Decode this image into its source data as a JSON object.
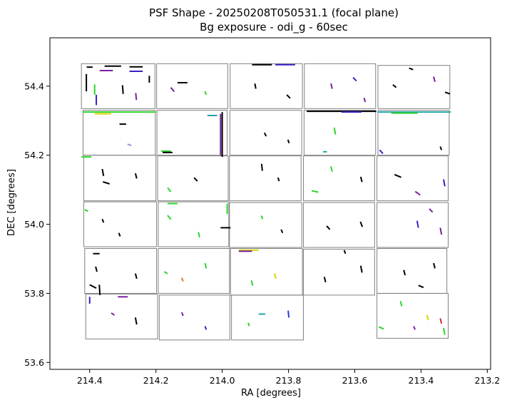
{
  "chart_data": {
    "type": "scatter",
    "title_line1": "PSF Shape - 20250208T050531.1 (focal plane)",
    "title_line2": "Bg exposure - odi_g - 60sec",
    "xlabel": "RA [degrees]",
    "ylabel": "DEC [degrees]",
    "xlim": [
      214.52,
      213.19
    ],
    "ylim": [
      53.58,
      54.54
    ],
    "x_inverted": true,
    "grid": false,
    "x_ticks": [
      {
        "value": 214.4,
        "label": "214.4"
      },
      {
        "value": 214.2,
        "label": "214.2"
      },
      {
        "value": 214.0,
        "label": "214.0"
      },
      {
        "value": 213.8,
        "label": "213.8"
      },
      {
        "value": 213.6,
        "label": "213.6"
      },
      {
        "value": 213.4,
        "label": "213.4"
      },
      {
        "value": 213.2,
        "label": "213.2"
      }
    ],
    "y_ticks": [
      {
        "value": 53.6,
        "label": "53.6"
      },
      {
        "value": 53.8,
        "label": "53.8"
      },
      {
        "value": 54.0,
        "label": "54.0"
      },
      {
        "value": 54.2,
        "label": "54.2"
      },
      {
        "value": 54.4,
        "label": "54.4"
      }
    ],
    "ccd_color": "#808080",
    "ccds": [
      {
        "ra": [
          214.425,
          214.203
        ],
        "dec": [
          54.335,
          54.465
        ]
      },
      {
        "ra": [
          214.198,
          213.983
        ],
        "dec": [
          54.335,
          54.465
        ]
      },
      {
        "ra": [
          213.976,
          213.758
        ],
        "dec": [
          54.335,
          54.465
        ]
      },
      {
        "ra": [
          213.752,
          213.537
        ],
        "dec": [
          54.335,
          54.465
        ]
      },
      {
        "ra": [
          213.53,
          213.313
        ],
        "dec": [
          54.335,
          54.46
        ]
      },
      {
        "ra": [
          214.42,
          214.202
        ],
        "dec": [
          54.2,
          54.33
        ]
      },
      {
        "ra": [
          214.197,
          213.985
        ],
        "dec": [
          54.2,
          54.33
        ]
      },
      {
        "ra": [
          213.977,
          213.76
        ],
        "dec": [
          54.2,
          54.33
        ]
      },
      {
        "ra": [
          213.753,
          213.537
        ],
        "dec": [
          54.2,
          54.33
        ]
      },
      {
        "ra": [
          213.53,
          213.315
        ],
        "dec": [
          54.2,
          54.33
        ]
      },
      {
        "ra": [
          214.418,
          214.2
        ],
        "dec": [
          54.068,
          54.2
        ]
      },
      {
        "ra": [
          214.195,
          213.982
        ],
        "dec": [
          54.068,
          54.198
        ]
      },
      {
        "ra": [
          213.978,
          213.762
        ],
        "dec": [
          54.068,
          54.198
        ]
      },
      {
        "ra": [
          213.755,
          213.54
        ],
        "dec": [
          54.068,
          54.198
        ]
      },
      {
        "ra": [
          213.533,
          213.318
        ],
        "dec": [
          54.068,
          54.198
        ]
      },
      {
        "ra": [
          214.418,
          214.198
        ],
        "dec": [
          53.935,
          54.065
        ]
      },
      {
        "ra": [
          214.193,
          213.98
        ],
        "dec": [
          53.935,
          54.065
        ]
      },
      {
        "ra": [
          213.978,
          213.76
        ],
        "dec": [
          53.933,
          54.063
        ]
      },
      {
        "ra": [
          213.755,
          213.54
        ],
        "dec": [
          53.933,
          54.063
        ]
      },
      {
        "ra": [
          213.533,
          213.318
        ],
        "dec": [
          53.933,
          54.063
        ]
      },
      {
        "ra": [
          214.415,
          214.198
        ],
        "dec": [
          53.8,
          53.93
        ]
      },
      {
        "ra": [
          214.193,
          213.978
        ],
        "dec": [
          53.8,
          53.93
        ]
      },
      {
        "ra": [
          213.975,
          213.758
        ],
        "dec": [
          53.795,
          53.93
        ]
      },
      {
        "ra": [
          213.755,
          213.54
        ],
        "dec": [
          53.795,
          53.928
        ]
      },
      {
        "ra": [
          213.533,
          213.322
        ],
        "dec": [
          53.8,
          53.93
        ]
      },
      {
        "ra": [
          214.412,
          214.195
        ],
        "dec": [
          53.668,
          53.798
        ]
      },
      {
        "ra": [
          214.19,
          213.977
        ],
        "dec": [
          53.665,
          53.795
        ]
      },
      {
        "ra": [
          213.972,
          213.755
        ],
        "dec": [
          53.665,
          53.795
        ]
      },
      {
        "ra": [
          213.533,
          213.318
        ],
        "dec": [
          53.67,
          53.8
        ]
      }
    ],
    "psf_marks": [
      {
        "ra": 214.4,
        "dec": 54.455,
        "dx": 0.018,
        "dy": 0,
        "color": "#000000"
      },
      {
        "ra": 214.33,
        "dec": 54.458,
        "dx": 0.05,
        "dy": 0,
        "color": "#000000"
      },
      {
        "ra": 214.26,
        "dec": 54.456,
        "dx": 0.04,
        "dy": 0,
        "color": "#000000"
      },
      {
        "ra": 214.35,
        "dec": 54.445,
        "dx": 0.04,
        "dy": 0,
        "color": "#7a1fa2"
      },
      {
        "ra": 214.26,
        "dec": 54.443,
        "dx": 0.04,
        "dy": 0,
        "color": "#3a1fc0"
      },
      {
        "ra": 214.41,
        "dec": 54.41,
        "dx": 0,
        "dy": 0.05,
        "color": "#000000"
      },
      {
        "ra": 214.385,
        "dec": 54.39,
        "dx": 0,
        "dy": 0.03,
        "color": "#2dd42d"
      },
      {
        "ra": 214.38,
        "dec": 54.36,
        "dx": 0,
        "dy": 0.03,
        "color": "#3a1fc0"
      },
      {
        "ra": 214.3,
        "dec": 54.39,
        "dx": 0.002,
        "dy": 0.025,
        "color": "#000000"
      },
      {
        "ra": 214.26,
        "dec": 54.37,
        "dx": 0.002,
        "dy": 0.02,
        "color": "#7a1fa2"
      },
      {
        "ra": 214.22,
        "dec": 54.42,
        "dx": 0,
        "dy": 0.02,
        "color": "#000000"
      },
      {
        "ra": 214.15,
        "dec": 54.39,
        "dx": 0.01,
        "dy": 0.012,
        "color": "#7a1fa2"
      },
      {
        "ra": 214.12,
        "dec": 54.41,
        "dx": 0.03,
        "dy": 0,
        "color": "#000000"
      },
      {
        "ra": 214.05,
        "dec": 54.38,
        "dx": 0.004,
        "dy": 0.01,
        "color": "#2dd42d"
      },
      {
        "ra": 213.88,
        "dec": 54.462,
        "dx": 0.06,
        "dy": 0,
        "color": "#000000"
      },
      {
        "ra": 213.81,
        "dec": 54.462,
        "dx": 0.06,
        "dy": 0,
        "color": "#3a1fc0"
      },
      {
        "ra": 213.9,
        "dec": 54.4,
        "dx": 0.003,
        "dy": 0.015,
        "color": "#000000"
      },
      {
        "ra": 213.8,
        "dec": 54.37,
        "dx": 0.01,
        "dy": 0.01,
        "color": "#000000"
      },
      {
        "ra": 213.67,
        "dec": 54.4,
        "dx": 0.004,
        "dy": 0.015,
        "color": "#7a1fa2"
      },
      {
        "ra": 213.6,
        "dec": 54.42,
        "dx": 0.01,
        "dy": 0.01,
        "color": "#3a1fc0"
      },
      {
        "ra": 213.57,
        "dec": 54.36,
        "dx": 0.004,
        "dy": 0.012,
        "color": "#7a1fa2"
      },
      {
        "ra": 213.48,
        "dec": 54.4,
        "dx": 0.01,
        "dy": 0.008,
        "color": "#000000"
      },
      {
        "ra": 213.43,
        "dec": 54.45,
        "dx": 0.012,
        "dy": 0.004,
        "color": "#000000"
      },
      {
        "ra": 213.36,
        "dec": 54.42,
        "dx": 0.004,
        "dy": 0.015,
        "color": "#7a1fa2"
      },
      {
        "ra": 213.32,
        "dec": 54.38,
        "dx": 0.015,
        "dy": 0.005,
        "color": "#000000"
      },
      {
        "ra": 214.31,
        "dec": 54.325,
        "dx": 0.22,
        "dy": 0,
        "color": "#2dd42d"
      },
      {
        "ra": 214.36,
        "dec": 54.32,
        "dx": 0.05,
        "dy": 0,
        "color": "#d8d800"
      },
      {
        "ra": 214.3,
        "dec": 54.29,
        "dx": 0.02,
        "dy": 0,
        "color": "#000000"
      },
      {
        "ra": 214.28,
        "dec": 54.23,
        "dx": 0.012,
        "dy": 0.004,
        "color": "#b08fd0"
      },
      {
        "ra": 214.41,
        "dec": 54.195,
        "dx": 0.03,
        "dy": 0,
        "color": "#2dd42d"
      },
      {
        "ra": 214.17,
        "dec": 54.212,
        "dx": 0.03,
        "dy": 0,
        "color": "#2dd42d"
      },
      {
        "ra": 214.165,
        "dec": 54.208,
        "dx": 0.03,
        "dy": 0,
        "color": "#000000"
      },
      {
        "ra": 214.0,
        "dec": 54.26,
        "dx": 0,
        "dy": 0.13,
        "color": "#000000"
      },
      {
        "ra": 214.005,
        "dec": 54.26,
        "dx": 0,
        "dy": 0.12,
        "color": "#7a1fa2"
      },
      {
        "ra": 214.03,
        "dec": 54.315,
        "dx": 0.03,
        "dy": 0,
        "color": "#1fa6a6"
      },
      {
        "ra": 213.87,
        "dec": 54.26,
        "dx": 0.005,
        "dy": 0.01,
        "color": "#000000"
      },
      {
        "ra": 213.8,
        "dec": 54.24,
        "dx": 0.003,
        "dy": 0.01,
        "color": "#000000"
      },
      {
        "ra": 213.64,
        "dec": 54.327,
        "dx": 0.21,
        "dy": 0,
        "color": "#000000"
      },
      {
        "ra": 213.61,
        "dec": 54.325,
        "dx": 0.06,
        "dy": 0,
        "color": "#3a1fc0"
      },
      {
        "ra": 213.42,
        "dec": 54.325,
        "dx": 0.22,
        "dy": 0,
        "color": "#1fa6a6"
      },
      {
        "ra": 213.45,
        "dec": 54.322,
        "dx": 0.08,
        "dy": 0,
        "color": "#2dd42d"
      },
      {
        "ra": 213.69,
        "dec": 54.21,
        "dx": 0.012,
        "dy": 0,
        "color": "#1fa6a6"
      },
      {
        "ra": 213.66,
        "dec": 54.27,
        "dx": 0.004,
        "dy": 0.02,
        "color": "#2dd42d"
      },
      {
        "ra": 213.52,
        "dec": 54.21,
        "dx": 0.01,
        "dy": 0.01,
        "color": "#3a1fc0"
      },
      {
        "ra": 213.34,
        "dec": 54.22,
        "dx": 0.004,
        "dy": 0.01,
        "color": "#000000"
      },
      {
        "ra": 214.36,
        "dec": 54.15,
        "dx": 0.004,
        "dy": 0.02,
        "color": "#000000"
      },
      {
        "ra": 214.35,
        "dec": 54.12,
        "dx": 0.02,
        "dy": 0.006,
        "color": "#000000"
      },
      {
        "ra": 214.26,
        "dec": 54.14,
        "dx": 0.004,
        "dy": 0.015,
        "color": "#000000"
      },
      {
        "ra": 214.16,
        "dec": 54.1,
        "dx": 0.01,
        "dy": 0.012,
        "color": "#2dd42d"
      },
      {
        "ra": 214.08,
        "dec": 54.13,
        "dx": 0.01,
        "dy": 0.01,
        "color": "#000000"
      },
      {
        "ra": 213.88,
        "dec": 54.165,
        "dx": 0.002,
        "dy": 0.02,
        "color": "#000000"
      },
      {
        "ra": 213.83,
        "dec": 54.13,
        "dx": 0.004,
        "dy": 0.01,
        "color": "#000000"
      },
      {
        "ra": 213.72,
        "dec": 54.095,
        "dx": 0.02,
        "dy": 0.004,
        "color": "#2dd42d"
      },
      {
        "ra": 213.67,
        "dec": 54.16,
        "dx": 0.004,
        "dy": 0.015,
        "color": "#2dd42d"
      },
      {
        "ra": 213.58,
        "dec": 54.13,
        "dx": 0.004,
        "dy": 0.015,
        "color": "#000000"
      },
      {
        "ra": 213.47,
        "dec": 54.14,
        "dx": 0.02,
        "dy": 0.008,
        "color": "#000000"
      },
      {
        "ra": 213.41,
        "dec": 54.09,
        "dx": 0.015,
        "dy": 0.01,
        "color": "#7a1fa2"
      },
      {
        "ra": 213.33,
        "dec": 54.12,
        "dx": 0.004,
        "dy": 0.02,
        "color": "#3a1fc0"
      },
      {
        "ra": 214.41,
        "dec": 54.04,
        "dx": 0.01,
        "dy": 0.004,
        "color": "#2dd42d"
      },
      {
        "ra": 214.36,
        "dec": 54.01,
        "dx": 0.004,
        "dy": 0.01,
        "color": "#000000"
      },
      {
        "ra": 214.31,
        "dec": 53.97,
        "dx": 0.004,
        "dy": 0.01,
        "color": "#000000"
      },
      {
        "ra": 214.15,
        "dec": 54.06,
        "dx": 0.03,
        "dy": 0,
        "color": "#2dd42d"
      },
      {
        "ra": 214.16,
        "dec": 54.02,
        "dx": 0.01,
        "dy": 0.012,
        "color": "#2dd42d"
      },
      {
        "ra": 214.07,
        "dec": 53.97,
        "dx": 0.004,
        "dy": 0.015,
        "color": "#2dd42d"
      },
      {
        "ra": 213.99,
        "dec": 53.99,
        "dx": 0.03,
        "dy": 0,
        "color": "#000000"
      },
      {
        "ra": 213.985,
        "dec": 54.045,
        "dx": 0,
        "dy": 0.03,
        "color": "#2dd42d"
      },
      {
        "ra": 213.88,
        "dec": 54.02,
        "dx": 0.004,
        "dy": 0.01,
        "color": "#2dd42d"
      },
      {
        "ra": 213.82,
        "dec": 53.98,
        "dx": 0.004,
        "dy": 0.01,
        "color": "#000000"
      },
      {
        "ra": 213.58,
        "dec": 54.0,
        "dx": 0.006,
        "dy": 0.015,
        "color": "#000000"
      },
      {
        "ra": 213.68,
        "dec": 53.99,
        "dx": 0.01,
        "dy": 0.01,
        "color": "#000000"
      },
      {
        "ra": 213.41,
        "dec": 54.0,
        "dx": 0.004,
        "dy": 0.02,
        "color": "#3a1fc0"
      },
      {
        "ra": 213.37,
        "dec": 54.04,
        "dx": 0.01,
        "dy": 0.01,
        "color": "#7a1fa2"
      },
      {
        "ra": 213.34,
        "dec": 53.98,
        "dx": 0.004,
        "dy": 0.02,
        "color": "#7a1fa2"
      },
      {
        "ra": 214.38,
        "dec": 53.915,
        "dx": 0.02,
        "dy": 0,
        "color": "#000000"
      },
      {
        "ra": 214.38,
        "dec": 53.87,
        "dx": 0.004,
        "dy": 0.015,
        "color": "#000000"
      },
      {
        "ra": 214.39,
        "dec": 53.82,
        "dx": 0.02,
        "dy": 0.01,
        "color": "#000000"
      },
      {
        "ra": 214.37,
        "dec": 53.81,
        "dx": 0.002,
        "dy": 0.03,
        "color": "#000000"
      },
      {
        "ra": 214.26,
        "dec": 53.85,
        "dx": 0.004,
        "dy": 0.015,
        "color": "#000000"
      },
      {
        "ra": 214.17,
        "dec": 53.86,
        "dx": 0.01,
        "dy": 0.006,
        "color": "#2dd42d"
      },
      {
        "ra": 214.12,
        "dec": 53.84,
        "dx": 0.004,
        "dy": 0.01,
        "color": "#e8731f"
      },
      {
        "ra": 214.05,
        "dec": 53.88,
        "dx": 0.004,
        "dy": 0.015,
        "color": "#2dd42d"
      },
      {
        "ra": 213.92,
        "dec": 53.925,
        "dx": 0.06,
        "dy": 0,
        "color": "#d8d800"
      },
      {
        "ra": 213.93,
        "dec": 53.922,
        "dx": 0.04,
        "dy": 0,
        "color": "#7a1fa2"
      },
      {
        "ra": 213.91,
        "dec": 53.83,
        "dx": 0.004,
        "dy": 0.015,
        "color": "#2dd42d"
      },
      {
        "ra": 213.84,
        "dec": 53.85,
        "dx": 0.004,
        "dy": 0.015,
        "color": "#d8d800"
      },
      {
        "ra": 213.63,
        "dec": 53.92,
        "dx": 0.004,
        "dy": 0.01,
        "color": "#000000"
      },
      {
        "ra": 213.58,
        "dec": 53.87,
        "dx": 0.004,
        "dy": 0.02,
        "color": "#000000"
      },
      {
        "ra": 213.69,
        "dec": 53.84,
        "dx": 0.004,
        "dy": 0.015,
        "color": "#000000"
      },
      {
        "ra": 213.45,
        "dec": 53.86,
        "dx": 0.004,
        "dy": 0.015,
        "color": "#000000"
      },
      {
        "ra": 213.4,
        "dec": 53.82,
        "dx": 0.015,
        "dy": 0.006,
        "color": "#000000"
      },
      {
        "ra": 213.36,
        "dec": 53.88,
        "dx": 0.004,
        "dy": 0.015,
        "color": "#000000"
      },
      {
        "ra": 214.3,
        "dec": 53.79,
        "dx": 0.03,
        "dy": 0,
        "color": "#7a1fa2"
      },
      {
        "ra": 214.4,
        "dec": 53.78,
        "dx": 0,
        "dy": 0.02,
        "color": "#3a1fc0"
      },
      {
        "ra": 214.33,
        "dec": 53.74,
        "dx": 0.01,
        "dy": 0.006,
        "color": "#7a1fa2"
      },
      {
        "ra": 214.26,
        "dec": 53.72,
        "dx": 0.004,
        "dy": 0.02,
        "color": "#000000"
      },
      {
        "ra": 214.12,
        "dec": 53.74,
        "dx": 0.004,
        "dy": 0.01,
        "color": "#7a1fa2"
      },
      {
        "ra": 214.05,
        "dec": 53.7,
        "dx": 0.004,
        "dy": 0.01,
        "color": "#3a1fc0"
      },
      {
        "ra": 213.88,
        "dec": 53.74,
        "dx": 0.02,
        "dy": 0,
        "color": "#1fa6a6"
      },
      {
        "ra": 213.8,
        "dec": 53.74,
        "dx": 0.002,
        "dy": 0.02,
        "color": "#1f3fd4"
      },
      {
        "ra": 213.92,
        "dec": 53.71,
        "dx": 0.004,
        "dy": 0.01,
        "color": "#2dd42d"
      },
      {
        "ra": 213.52,
        "dec": 53.7,
        "dx": 0.015,
        "dy": 0.006,
        "color": "#2dd42d"
      },
      {
        "ra": 213.46,
        "dec": 53.77,
        "dx": 0.004,
        "dy": 0.015,
        "color": "#2dd42d"
      },
      {
        "ra": 213.38,
        "dec": 53.73,
        "dx": 0.004,
        "dy": 0.015,
        "color": "#d8d800"
      },
      {
        "ra": 213.34,
        "dec": 53.72,
        "dx": 0.004,
        "dy": 0.015,
        "color": "#d42d2d"
      },
      {
        "ra": 213.33,
        "dec": 53.69,
        "dx": 0.004,
        "dy": 0.02,
        "color": "#2dd42d"
      },
      {
        "ra": 213.42,
        "dec": 53.7,
        "dx": 0.004,
        "dy": 0.01,
        "color": "#7a1fa2"
      }
    ]
  }
}
